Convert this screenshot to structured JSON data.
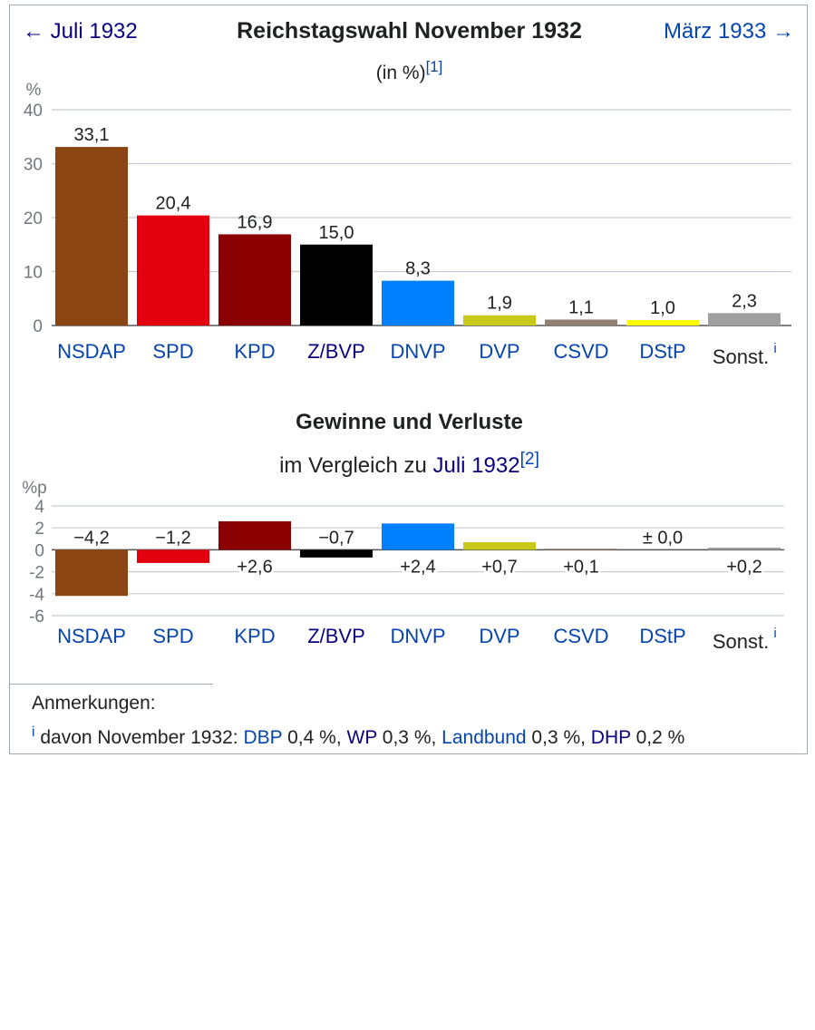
{
  "nav": {
    "prev": "← Juli 1932",
    "next": "März 1933 →"
  },
  "title": "Reichstagswahl November 1932",
  "subtitle": {
    "text": "(in %)",
    "ref": "[1]"
  },
  "changes": {
    "title": "Gewinne und Verluste",
    "subtitle_prefix": "im Vergleich zu ",
    "subtitle_link": "Juli 1932",
    "ref": "[2]"
  },
  "notes": {
    "heading": "Anmerkungen:",
    "marker": "i",
    "text_prefix": " davon November 1932: ",
    "items": [
      {
        "party": "DBP",
        "value": " 0,4 %, ",
        "style": "link"
      },
      {
        "party": "WP",
        "value": " 0,3 %, ",
        "style": "vlink"
      },
      {
        "party": "Landbund",
        "value": " 0,3 %, ",
        "style": "link"
      },
      {
        "party": "DHP",
        "value": " 0,2 %",
        "style": "vlink"
      }
    ]
  },
  "chart_data": [
    {
      "type": "bar",
      "ylabel": "%",
      "ylim": [
        0,
        40
      ],
      "yticks": [
        0,
        10,
        20,
        30,
        40
      ],
      "grid": true,
      "categories": [
        "NSDAP",
        "SPD",
        "KPD",
        "Z/BVP",
        "DNVP",
        "DVP",
        "CSVD",
        "DStP",
        "Sonst."
      ],
      "category_marker": [
        "",
        "",
        "",
        "",
        "",
        "",
        "",
        "",
        "i"
      ],
      "category_style": [
        "link",
        "link",
        "link",
        "vlink",
        "link",
        "link",
        "link",
        "link",
        "text"
      ],
      "values": [
        33.1,
        20.4,
        16.9,
        15.0,
        8.3,
        1.9,
        1.1,
        1.0,
        2.3
      ],
      "value_labels": [
        "33,1",
        "20,4",
        "16,9",
        "15,0",
        "8,3",
        "1,9",
        "1,1",
        "1,0",
        "2,3"
      ],
      "colors": [
        "#8B4513",
        "#E3000F",
        "#8B0000",
        "#000000",
        "#0080FF",
        "#C9C91C",
        "#908070",
        "#FFFF00",
        "#A0A0A0"
      ]
    },
    {
      "type": "bar",
      "ylabel": "%p",
      "ylim": [
        -6,
        4
      ],
      "yticks": [
        4,
        2,
        0,
        -2,
        -4,
        -6
      ],
      "grid": true,
      "categories": [
        "NSDAP",
        "SPD",
        "KPD",
        "Z/BVP",
        "DNVP",
        "DVP",
        "CSVD",
        "DStP",
        "Sonst."
      ],
      "category_marker": [
        "",
        "",
        "",
        "",
        "",
        "",
        "",
        "",
        "i"
      ],
      "category_style": [
        "link",
        "link",
        "link",
        "vlink",
        "link",
        "link",
        "link",
        "link",
        "text"
      ],
      "values": [
        -4.2,
        -1.2,
        2.6,
        -0.7,
        2.4,
        0.7,
        0.1,
        0.0,
        0.2
      ],
      "value_labels": [
        "−4,2",
        "−1,2",
        "+2,6",
        "−0,7",
        "+2,4",
        "+0,7",
        "+0,1",
        "± 0,0",
        "+0,2"
      ],
      "colors": [
        "#8B4513",
        "#E3000F",
        "#8B0000",
        "#000000",
        "#0080FF",
        "#C9C91C",
        "#908070",
        "#FFFF00",
        "#A0A0A0"
      ]
    }
  ]
}
